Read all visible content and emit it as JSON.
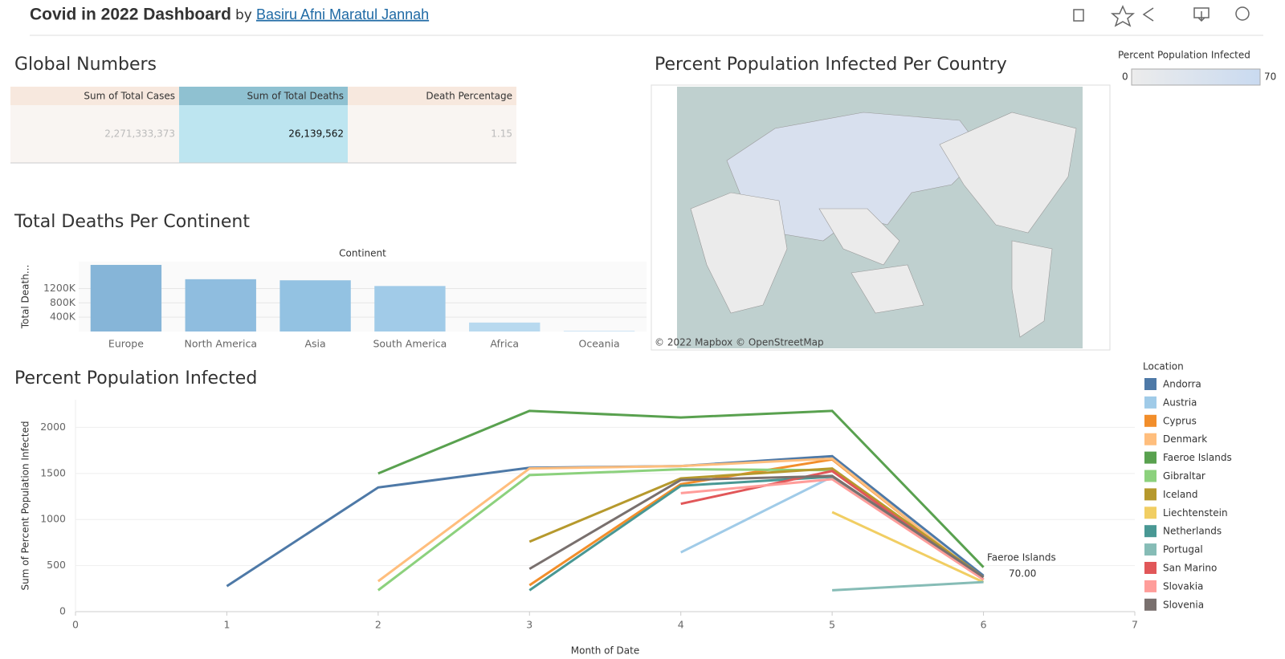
{
  "header": {
    "title": "Covid in 2022 Dashboard",
    "by": "by",
    "author": "Basiru Afni Maratul Jannah"
  },
  "global_numbers": {
    "title": "Global Numbers",
    "columns": [
      "Sum of Total Cases",
      "Sum of Total Deaths",
      "Death Percentage"
    ],
    "rows": [
      [
        "2,271,333,373",
        "26,139,562",
        "1.15"
      ]
    ]
  },
  "map": {
    "title": "Percent Population Infected Per Country",
    "legend_title": "Percent Population Infected",
    "legend_min": 0,
    "legend_max": 70,
    "attribution": "© 2022 Mapbox © OpenStreetMap"
  },
  "chart_data": [
    {
      "type": "bar",
      "title": "Total Deaths Per Continent",
      "column_header": "Continent",
      "y_label": "Total Death...",
      "categories": [
        "Europe",
        "North America",
        "Asia",
        "South America",
        "Africa",
        "Oceania"
      ],
      "values": [
        1860000,
        1460000,
        1430000,
        1270000,
        250000,
        20000
      ],
      "colors": [
        "#86b5d8",
        "#8fbddf",
        "#93c2e2",
        "#a1cbe8",
        "#b8d9ef",
        "#c9e2f3"
      ],
      "ylim": [
        0,
        1950000
      ],
      "yticks": [
        {
          "value": 400000,
          "label": "400K"
        },
        {
          "value": 800000,
          "label": "800K"
        },
        {
          "value": 1200000,
          "label": "1200K"
        }
      ],
      "grid": true
    },
    {
      "type": "line",
      "title": "Percent Population Infected",
      "x_label": "Month of Date",
      "y_label": "Sum of Percent Population Infected",
      "x": [
        1,
        2,
        3,
        4,
        5,
        6
      ],
      "xlim": [
        0,
        7
      ],
      "xticks": [
        0,
        1,
        2,
        3,
        4,
        5,
        6,
        7
      ],
      "ylim": [
        0,
        2300
      ],
      "yticks": [
        0,
        500,
        1000,
        1500,
        2000
      ],
      "grid": true,
      "legend_title": "Location",
      "legend": "right",
      "annotation": {
        "text": "Faeroe Islands",
        "label": "70.00"
      },
      "series": [
        {
          "name": "Andorra",
          "color": "#4e79a7",
          "values": [
            277,
            1348,
            1562,
            1580,
            1688,
            390
          ]
        },
        {
          "name": "Austria",
          "color": "#a0cbe8",
          "values": [
            null,
            null,
            null,
            643,
            1464,
            375
          ]
        },
        {
          "name": "Cyprus",
          "color": "#f28e2b",
          "values": [
            null,
            null,
            286,
            1384,
            1652,
            348
          ]
        },
        {
          "name": "Denmark",
          "color": "#ffbe7d",
          "values": [
            null,
            330,
            1554,
            1580,
            1661,
            348
          ]
        },
        {
          "name": "Faeroe Islands",
          "color": "#59a14f",
          "values": [
            null,
            1500,
            2179,
            2107,
            2179,
            482
          ]
        },
        {
          "name": "Gibraltar",
          "color": "#8cd17d",
          "values": [
            null,
            232,
            1482,
            1545,
            1536,
            348
          ]
        },
        {
          "name": "Iceland",
          "color": "#b6992d",
          "values": [
            null,
            null,
            759,
            1446,
            1554,
            375
          ]
        },
        {
          "name": "Liechtenstein",
          "color": "#f1ce63",
          "values": [
            null,
            null,
            null,
            null,
            1080,
            320
          ]
        },
        {
          "name": "Netherlands",
          "color": "#499894",
          "values": [
            null,
            null,
            232,
            1366,
            1464,
            375
          ]
        },
        {
          "name": "Portugal",
          "color": "#86bcb6",
          "values": [
            null,
            null,
            null,
            null,
            232,
            321
          ]
        },
        {
          "name": "San Marino",
          "color": "#e15759",
          "values": [
            null,
            null,
            null,
            1170,
            1527,
            348
          ]
        },
        {
          "name": "Slovakia",
          "color": "#ff9d9a",
          "values": [
            null,
            null,
            null,
            1286,
            1437,
            348
          ]
        },
        {
          "name": "Slovenia",
          "color": "#79706e",
          "values": [
            null,
            null,
            464,
            1429,
            1473,
            375
          ]
        }
      ]
    }
  ]
}
